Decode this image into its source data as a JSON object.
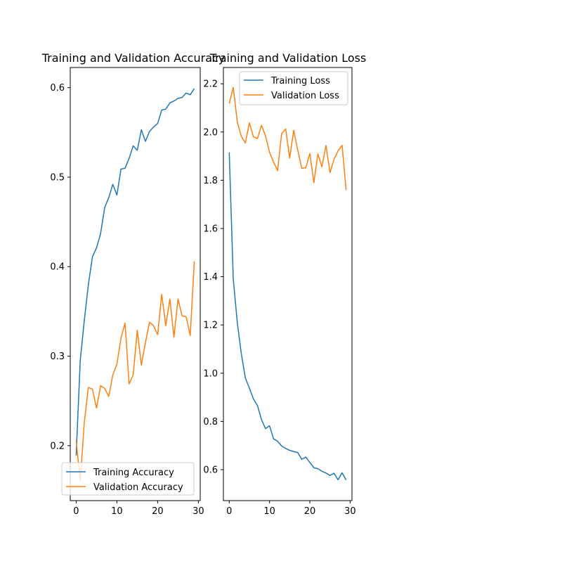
{
  "chart_data": [
    {
      "type": "line",
      "title": "Training and Validation Accuracy",
      "xlabel": "",
      "ylabel": "",
      "xlim": [
        -1.45,
        30.45
      ],
      "ylim": [
        0.1386,
        0.6225
      ],
      "xticks": [
        0,
        10,
        20,
        30
      ],
      "xtick_labels": [
        "0",
        "10",
        "20",
        "30"
      ],
      "yticks": [
        0.2,
        0.3,
        0.4,
        0.5,
        0.6
      ],
      "ytick_labels": [
        "0.2",
        "0.3",
        "0.4",
        "0.5",
        "0.6"
      ],
      "legend": {
        "position": "lower right",
        "entries": [
          "Training Accuracy",
          "Validation Accuracy"
        ]
      },
      "grid": false,
      "x": [
        0,
        1,
        2,
        3,
        4,
        5,
        6,
        7,
        8,
        9,
        10,
        11,
        12,
        13,
        14,
        15,
        16,
        17,
        18,
        19,
        20,
        21,
        22,
        23,
        24,
        25,
        26,
        27,
        28,
        29
      ],
      "series": [
        {
          "name": "Training Accuracy",
          "color": "#1f77b4",
          "values": [
            0.189,
            0.295,
            0.34,
            0.38,
            0.411,
            0.421,
            0.437,
            0.466,
            0.477,
            0.492,
            0.48,
            0.509,
            0.51,
            0.521,
            0.535,
            0.53,
            0.553,
            0.54,
            0.551,
            0.556,
            0.56,
            0.575,
            0.576,
            0.583,
            0.585,
            0.588,
            0.589,
            0.594,
            0.592,
            0.599
          ]
        },
        {
          "name": "Validation Accuracy",
          "color": "#ff7f0e",
          "values": [
            0.206,
            0.161,
            0.226,
            0.265,
            0.263,
            0.242,
            0.267,
            0.264,
            0.255,
            0.279,
            0.291,
            0.32,
            0.337,
            0.269,
            0.279,
            0.329,
            0.29,
            0.315,
            0.338,
            0.334,
            0.324,
            0.369,
            0.334,
            0.364,
            0.321,
            0.364,
            0.345,
            0.344,
            0.323,
            0.406
          ]
        }
      ]
    },
    {
      "type": "line",
      "title": "Training and Validation Loss",
      "xlabel": "",
      "ylabel": "",
      "xlim": [
        -1.45,
        30.45
      ],
      "ylim": [
        0.4716,
        2.2676
      ],
      "xticks": [
        0,
        10,
        20,
        30
      ],
      "xtick_labels": [
        "0",
        "10",
        "20",
        "30"
      ],
      "yticks": [
        0.6,
        0.8,
        1.0,
        1.2,
        1.4,
        1.6,
        1.8,
        2.0,
        2.2
      ],
      "ytick_labels": [
        "0.6",
        "0.8",
        "1.0",
        "1.2",
        "1.4",
        "1.6",
        "1.8",
        "2.0",
        "2.2"
      ],
      "legend": {
        "position": "upper right",
        "entries": [
          "Training Loss",
          "Validation Loss"
        ]
      },
      "grid": false,
      "x": [
        0,
        1,
        2,
        3,
        4,
        5,
        6,
        7,
        8,
        9,
        10,
        11,
        12,
        13,
        14,
        15,
        16,
        17,
        18,
        19,
        20,
        21,
        22,
        23,
        24,
        25,
        26,
        27,
        28,
        29
      ],
      "series": [
        {
          "name": "Training Loss",
          "color": "#1f77b4",
          "values": [
            1.915,
            1.39,
            1.21,
            1.08,
            0.98,
            0.938,
            0.893,
            0.866,
            0.808,
            0.77,
            0.782,
            0.728,
            0.718,
            0.698,
            0.688,
            0.68,
            0.675,
            0.671,
            0.643,
            0.652,
            0.63,
            0.608,
            0.604,
            0.593,
            0.586,
            0.576,
            0.585,
            0.558,
            0.587,
            0.557
          ]
        },
        {
          "name": "Validation Loss",
          "color": "#ff7f0e",
          "values": [
            2.118,
            2.185,
            2.042,
            1.982,
            1.955,
            2.038,
            1.98,
            1.973,
            2.028,
            1.984,
            1.916,
            1.876,
            1.84,
            1.993,
            2.013,
            1.892,
            2.007,
            1.925,
            1.849,
            1.852,
            1.911,
            1.79,
            1.909,
            1.856,
            1.944,
            1.832,
            1.887,
            1.922,
            1.945,
            1.759
          ]
        }
      ]
    }
  ]
}
